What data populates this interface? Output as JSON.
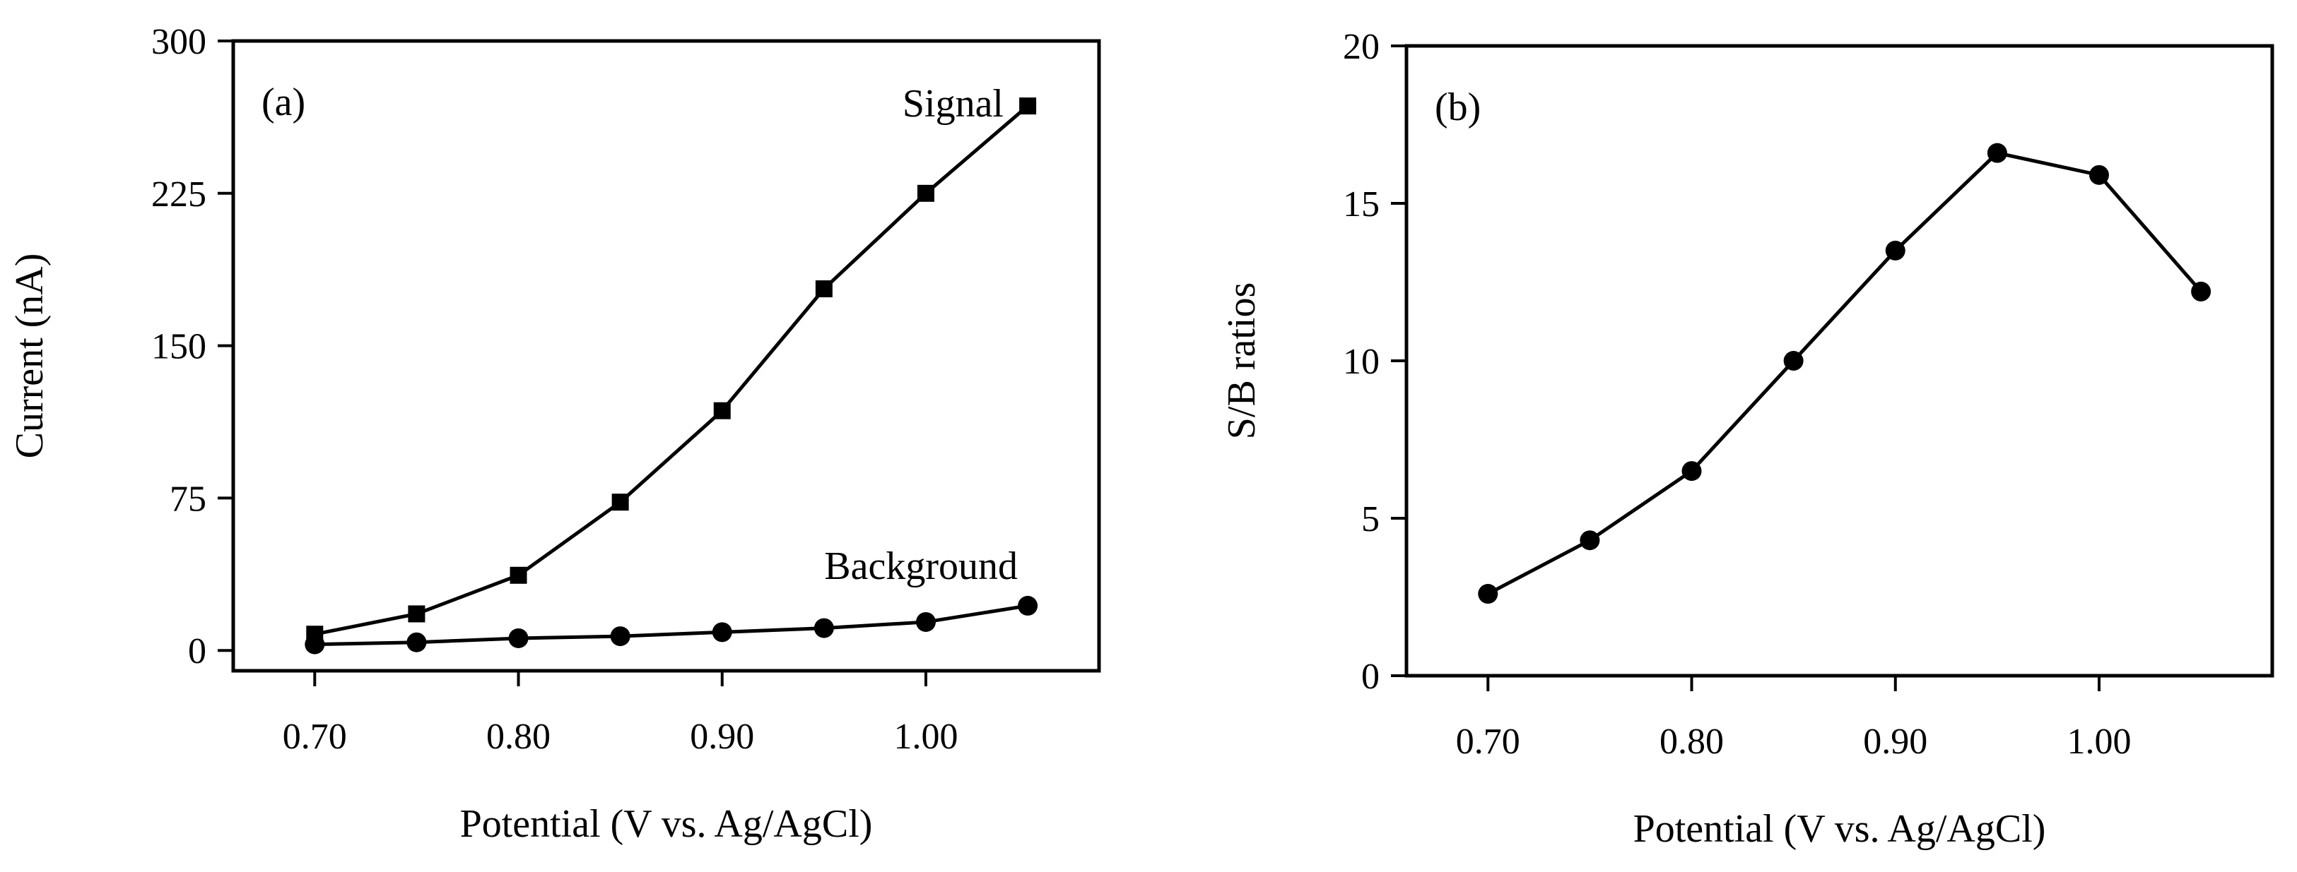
{
  "chart_data": [
    {
      "type": "line",
      "panel_label": "(a)",
      "xlabel": "Potential (V vs. Ag/AgCl)",
      "ylabel": "Current (nA)",
      "xlim": [
        0.66,
        1.085
      ],
      "ylim": [
        -10,
        300
      ],
      "x_ticks": [
        0.7,
        0.8,
        0.9,
        1.0
      ],
      "x_tick_labels": [
        "0.70",
        "0.80",
        "0.90",
        "1.00"
      ],
      "y_ticks": [
        0,
        75,
        150,
        225,
        300
      ],
      "y_tick_labels": [
        "0",
        "75",
        "150",
        "225",
        "300"
      ],
      "grid": false,
      "x": [
        0.7,
        0.75,
        0.8,
        0.85,
        0.9,
        0.95,
        1.0,
        1.05
      ],
      "series": [
        {
          "name": "Signal",
          "marker": "square",
          "values": [
            8,
            18,
            37,
            73,
            118,
            178,
            225,
            268
          ]
        },
        {
          "name": "Background",
          "marker": "circle",
          "values": [
            3,
            4,
            6,
            7,
            9,
            11,
            14,
            22
          ]
        }
      ]
    },
    {
      "type": "line",
      "panel_label": "(b)",
      "xlabel": "Potential (V vs. Ag/AgCl)",
      "ylabel": "S/B ratios",
      "xlim": [
        0.66,
        1.085
      ],
      "ylim": [
        0,
        20
      ],
      "x_ticks": [
        0.7,
        0.8,
        0.9,
        1.0
      ],
      "x_tick_labels": [
        "0.70",
        "0.80",
        "0.90",
        "1.00"
      ],
      "y_ticks": [
        0,
        5,
        10,
        15,
        20
      ],
      "y_tick_labels": [
        "0",
        "5",
        "10",
        "15",
        "20"
      ],
      "grid": false,
      "x": [
        0.7,
        0.75,
        0.8,
        0.85,
        0.9,
        0.95,
        1.0,
        1.05
      ],
      "series": [
        {
          "marker": "circle",
          "values": [
            2.6,
            4.3,
            6.5,
            10.0,
            13.5,
            16.6,
            15.9,
            12.2
          ]
        }
      ]
    }
  ]
}
